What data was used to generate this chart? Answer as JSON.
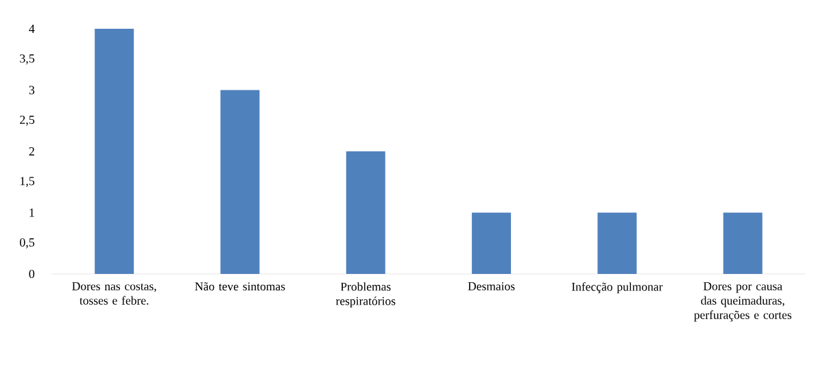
{
  "chart_data": {
    "type": "bar",
    "categories": [
      "Dores nas costas, tosses e febre.",
      "Não teve sintomas",
      "Problemas respiratórios",
      "Desmaios",
      "Infecção pulmonar",
      "Dores por causa das queimaduras, perfurações e cortes"
    ],
    "values": [
      4,
      3,
      2,
      1,
      1,
      1
    ],
    "color": "#4f81bd",
    "ylim": [
      0,
      4
    ],
    "yticks": [
      0,
      {
        "value": 0.5,
        "label": "0,5"
      },
      1,
      {
        "value": 1.5,
        "label": "1,5"
      },
      2,
      {
        "value": 2.5,
        "label": "2,5"
      },
      3,
      {
        "value": 3.5,
        "label": "3,5"
      },
      4
    ],
    "grid": false
  }
}
